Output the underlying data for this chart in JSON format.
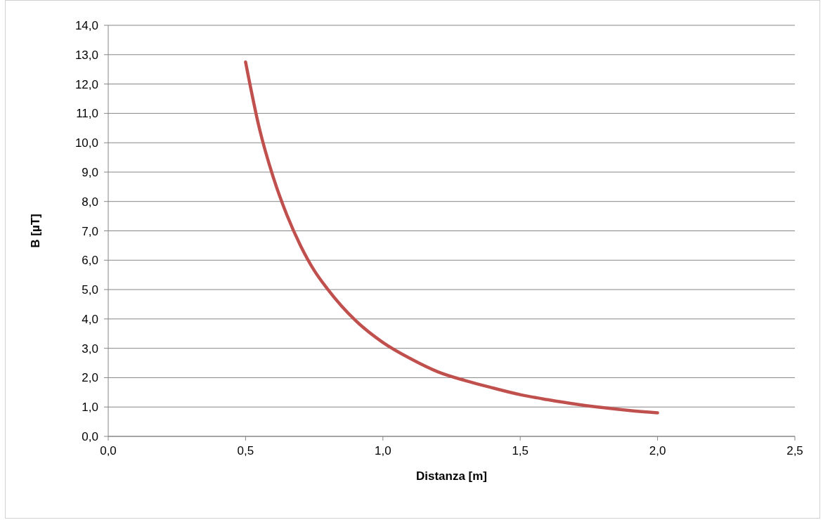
{
  "chart_data": {
    "type": "line",
    "xlabel": "Distanza [m]",
    "ylabel": "B [µT]",
    "x": [
      0.5,
      0.55,
      0.6,
      0.65,
      0.7,
      0.75,
      0.8,
      0.9,
      1.0,
      1.1,
      1.2,
      1.3,
      1.4,
      1.5,
      1.6,
      1.7,
      1.8,
      1.9,
      2.0
    ],
    "series": [
      {
        "color": "#c0504d",
        "values": [
          12.75,
          10.5,
          8.85,
          7.55,
          6.5,
          5.65,
          5.0,
          3.95,
          3.2,
          2.65,
          2.2,
          1.9,
          1.65,
          1.42,
          1.25,
          1.1,
          0.98,
          0.88,
          0.8
        ]
      }
    ],
    "xlim": [
      0,
      2.5
    ],
    "xticks": [
      {
        "value": 0,
        "label": "0,0"
      },
      {
        "value": 0.5,
        "label": "0,5"
      },
      {
        "value": 1,
        "label": "1,0"
      },
      {
        "value": 1.5,
        "label": "1,5"
      },
      {
        "value": 2,
        "label": "2,0"
      },
      {
        "value": 2.5,
        "label": "2,5"
      }
    ],
    "ylim": [
      0,
      14
    ],
    "yticks": [
      {
        "value": 0,
        "label": "0,0"
      },
      {
        "value": 1,
        "label": "1,0"
      },
      {
        "value": 2,
        "label": "2,0"
      },
      {
        "value": 3,
        "label": "3,0"
      },
      {
        "value": 4,
        "label": "4,0"
      },
      {
        "value": 5,
        "label": "5,0"
      },
      {
        "value": 6,
        "label": "6,0"
      },
      {
        "value": 7,
        "label": "7,0"
      },
      {
        "value": 8,
        "label": "8,0"
      },
      {
        "value": 9,
        "label": "9,0"
      },
      {
        "value": 10,
        "label": "10,0"
      },
      {
        "value": 11,
        "label": "11,0"
      },
      {
        "value": 12,
        "label": "12,0"
      },
      {
        "value": 13,
        "label": "13,0"
      },
      {
        "value": 14,
        "label": "14,0"
      }
    ],
    "grid": "y",
    "marker": "none",
    "line_style": "solid"
  }
}
